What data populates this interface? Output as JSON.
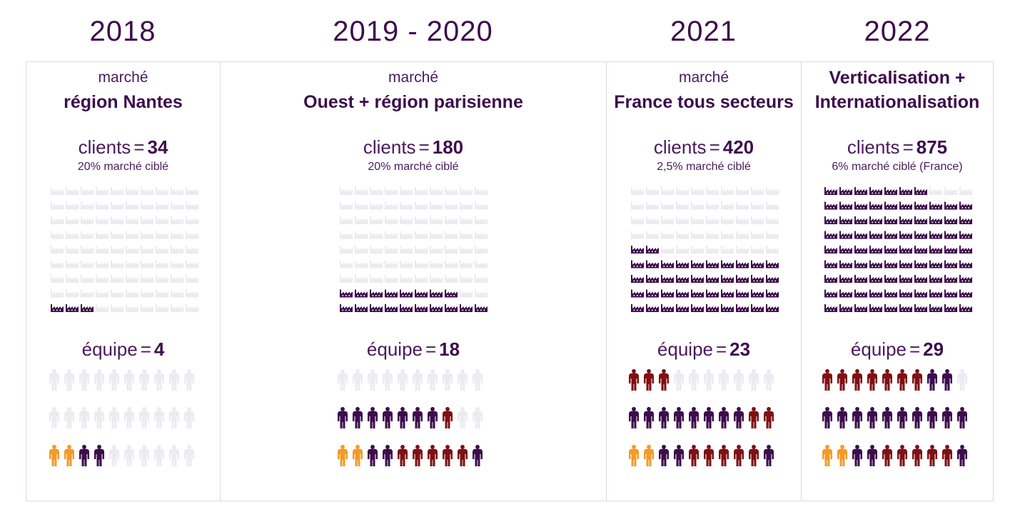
{
  "colors": {
    "purple": "#3d0d4c",
    "red": "#7e1114",
    "orange": "#f39a2a",
    "inactive": "#ecebf1"
  },
  "icons": {
    "client": "factory-icon",
    "team": "person-icon"
  },
  "panels": [
    {
      "year": "2018",
      "pre": "marché",
      "title": [
        "région Nantes"
      ],
      "clients_label": "clients",
      "eq": "=",
      "clients_value": "34",
      "share": "20% marché ciblé",
      "team_label": "équipe",
      "team_value": "4",
      "factory_active": 3,
      "people": {
        "orange": 2,
        "red": 0,
        "purple": 2
      }
    },
    {
      "year": "2019 - 2020",
      "pre": "marché",
      "title": [
        "Ouest + région parisienne"
      ],
      "clients_label": "clients",
      "eq": "=",
      "clients_value": "180",
      "share": "20% marché ciblé",
      "team_label": "équipe",
      "team_value": "18",
      "factory_active": 18,
      "people": {
        "orange": 2,
        "red": 6,
        "purple": 10
      }
    },
    {
      "year": "2021",
      "pre": "marché",
      "title": [
        "France tous secteurs"
      ],
      "clients_label": "clients",
      "eq": "=",
      "clients_value": "420",
      "share": "2,5% marché ciblé",
      "team_label": "équipe",
      "team_value": "23",
      "factory_active": 42,
      "people": {
        "orange": 2,
        "red": 10,
        "purple": 11
      }
    },
    {
      "year": "2022",
      "pre": "",
      "title": [
        "Verticalisation +",
        "Internationalisation"
      ],
      "clients_label": "clients",
      "eq": "=",
      "clients_value": "875",
      "share": "6% marché ciblé (France)",
      "team_label": "équipe",
      "team_value": "29",
      "factory_active": 87,
      "people": {
        "orange": 2,
        "red": 12,
        "purple": 15
      }
    }
  ]
}
